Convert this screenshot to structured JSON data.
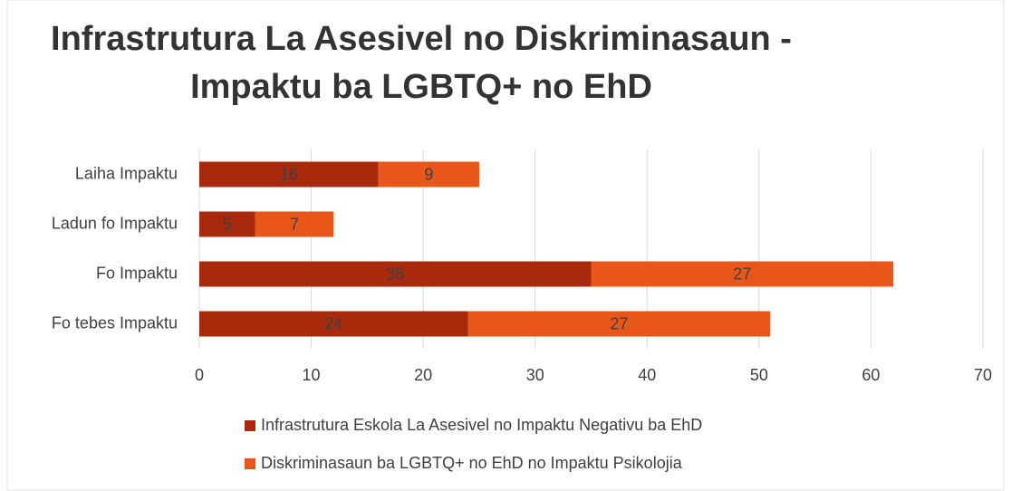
{
  "chart_data": {
    "type": "bar",
    "orientation": "horizontal",
    "stacked": true,
    "title": [
      "Infrastrutura La Asesivel no Diskriminasaun -",
      "Impaktu ba LGBTQ+ no EhD"
    ],
    "categories": [
      "Laiha Impaktu",
      "Ladun fo Impaktu",
      "Fo Impaktu",
      "Fo tebes Impaktu"
    ],
    "series": [
      {
        "name": "Infrastrutura Eskola La Asesivel no Impaktu Negativu ba EhD",
        "color": "#a8290c",
        "values": [
          16,
          5,
          35,
          24
        ]
      },
      {
        "name": "Diskriminasaun ba LGBTQ+ no EhD no Impaktu Psikolojia",
        "color": "#e8561a",
        "values": [
          9,
          7,
          27,
          27
        ]
      }
    ],
    "xlim": [
      0,
      70
    ],
    "xticks": [
      0,
      10,
      20,
      30,
      40,
      50,
      60,
      70
    ],
    "grid": true,
    "legend": "bottom"
  }
}
